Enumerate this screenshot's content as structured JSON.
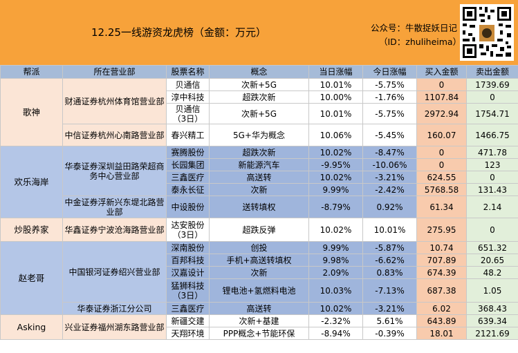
{
  "header": {
    "title": "12.25一线游资龙虎榜（金额：万元）",
    "account": "公众号：牛散捉妖日记",
    "account_id": "（ID：zhuliheima）"
  },
  "columns": [
    "帮派",
    "所在营业部",
    "股票名称",
    "概念",
    "当日涨幅",
    "今日涨幅",
    "买入金额",
    "卖出金额"
  ],
  "groups": [
    {
      "faction": "歌神",
      "branches": [
        {
          "name": "财通证券杭州体育馆营业部",
          "rows": [
            {
              "stock": "贝通信",
              "concept": "次新+5G",
              "day_change": "10.01%",
              "today_change": "-5.75%",
              "buy": "0",
              "sell": "1739.69"
            },
            {
              "stock": "淳中科技",
              "concept": "超跌次新",
              "day_change": "10.00%",
              "today_change": "-1.76%",
              "buy": "1107.84",
              "sell": "0"
            },
            {
              "stock": "贝通信\n（3日）",
              "concept": "次新+5G",
              "day_change": "10.01%",
              "today_change": "-5.75%",
              "buy": "2972.94",
              "sell": "1754.71"
            }
          ]
        },
        {
          "name": "中信证券杭州心南路营业部",
          "rows": [
            {
              "stock": "春兴精工",
              "concept": "5G+华为概念",
              "day_change": "10.06%",
              "today_change": "-5.45%",
              "buy": "160.07",
              "sell": "1466.75"
            }
          ]
        }
      ]
    },
    {
      "faction": "欢乐海岸",
      "branches": [
        {
          "name": "华泰证券深圳益田路荣超商务中心营业部",
          "rows": [
            {
              "stock": "赛腾股份",
              "concept": "超跌次新",
              "day_change": "10.02%",
              "today_change": "-8.47%",
              "buy": "0",
              "sell": "471.78"
            },
            {
              "stock": "长园集团",
              "concept": "新能源汽车",
              "day_change": "-9.95%",
              "today_change": "-10.06%",
              "buy": "0",
              "sell": "123"
            },
            {
              "stock": "三鑫医疗",
              "concept": "高送转",
              "day_change": "10.02%",
              "today_change": "-3.21%",
              "buy": "624.55",
              "sell": "0"
            },
            {
              "stock": "泰永长征",
              "concept": "次新",
              "day_change": "9.99%",
              "today_change": "-2.42%",
              "buy": "5768.58",
              "sell": "131.43"
            }
          ]
        },
        {
          "name": "中金证券浮新兴东堤北路营业部",
          "rows": [
            {
              "stock": "中设股份",
              "concept": "送转填权",
              "day_change": "-8.79%",
              "today_change": "0.92%",
              "buy": "61.34",
              "sell": "2.14"
            }
          ]
        }
      ]
    },
    {
      "faction": "炒股养家",
      "branches": [
        {
          "name": "华鑫证券宁波沧海路营业部",
          "rows": [
            {
              "stock": "达安股份\n（3日）",
              "concept": "超跌反弹",
              "day_change": "10.02%",
              "today_change": "10.01%",
              "buy": "275.95",
              "sell": "0"
            }
          ]
        }
      ]
    },
    {
      "faction": "赵老哥",
      "branches": [
        {
          "name": "中国银河证券绍兴营业部",
          "rows": [
            {
              "stock": "深南股份",
              "concept": "创投",
              "day_change": "9.99%",
              "today_change": "-5.87%",
              "buy": "10.74",
              "sell": "651.32"
            },
            {
              "stock": "百邦科技",
              "concept": "手机+高送转填权",
              "day_change": "9.98%",
              "today_change": "-6.62%",
              "buy": "707.89",
              "sell": "20.65"
            },
            {
              "stock": "汉嘉设计",
              "concept": "次新",
              "day_change": "2.09%",
              "today_change": "0.83%",
              "buy": "674.39",
              "sell": "48.2"
            },
            {
              "stock": "猛狮科技\n（3日）",
              "concept": "锂电池+氢燃料电池",
              "day_change": "10.03%",
              "today_change": "-7.13%",
              "buy": "687.38",
              "sell": "1.05"
            }
          ]
        },
        {
          "name": "华泰证券浙江分公司",
          "rows": [
            {
              "stock": "三鑫医疗",
              "concept": "高送转",
              "day_change": "10.02%",
              "today_change": "-3.21%",
              "buy": "6.02",
              "sell": "368.43"
            }
          ]
        }
      ]
    },
    {
      "faction": "Asking",
      "branches": [
        {
          "name": "兴业证券福州湖东路营业部",
          "rows": [
            {
              "stock": "新疆交建",
              "concept": "次新+基建",
              "day_change": "-2.32%",
              "today_change": "5.61%",
              "buy": "643.89",
              "sell": "639.34"
            },
            {
              "stock": "天翔环境",
              "concept": "PPP概念+节能环保",
              "day_change": "-8.94%",
              "today_change": "-0.39%",
              "buy": "18.01",
              "sell": "2121.69"
            }
          ]
        }
      ]
    }
  ]
}
